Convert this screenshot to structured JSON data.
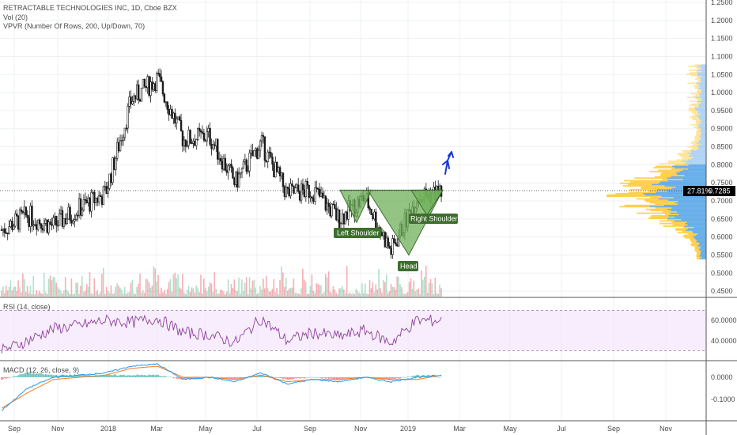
{
  "header": {
    "symbol_line": "RETRACTABLE TECHNOLOGIES INC, 1D, Cboe BZX",
    "vol_line": "Vol (20)",
    "vpvr_line": "VPVR (Number Of Rows, 200, Up/Down, 70)"
  },
  "price_tag": {
    "pct": "27.81%",
    "value": "0.7285"
  },
  "annotations": {
    "left_shoulder": "Left Shoulder",
    "head": "Head",
    "right_shoulder": "Right Shoulder"
  },
  "rsi_label": "RSI (14, close)",
  "macd_label": "MACD (12, 26, close, 9)",
  "colors": {
    "up": "#53b987",
    "down": "#eb4d5c",
    "candle": "#1a1a1a",
    "rsi": "#8e3f9a",
    "macd": "#2196f3",
    "signal": "#ff7a1a",
    "pattern_fill": "#6fb05a",
    "pattern_dark": "#3d6e2c",
    "vpvr_up": "#5aa7e8",
    "vpvr_down": "#ffc832",
    "arrow": "#1a36d8"
  },
  "chart_data": [
    {
      "type": "candlestick",
      "title": "RETRACTABLE TECHNOLOGIES INC, 1D, Cboe BZX",
      "x_ticks": [
        "Sep",
        "Nov",
        "2018",
        "Mar",
        "May",
        "Jul",
        "Sep",
        "Nov",
        "2019",
        "Mar",
        "May",
        "Jul",
        "Sep",
        "Nov"
      ],
      "y_ticks": [
        "1.2500",
        "1.2000",
        "1.1500",
        "1.1000",
        "1.0500",
        "1.0000",
        "0.9500",
        "0.9000",
        "0.8500",
        "0.8000",
        "0.7500",
        "0.7000",
        "0.6500",
        "0.6000",
        "0.5500",
        "0.5000",
        "0.4500"
      ],
      "ylim": [
        0.43,
        1.26
      ],
      "last_price": 0.7285,
      "close_path": [
        {
          "x": "Sep",
          "y": 0.62
        },
        {
          "x": "Oct",
          "y": 0.66
        },
        {
          "x": "Nov",
          "y": 0.63
        },
        {
          "x": "Dec",
          "y": 0.68
        },
        {
          "x": "2018",
          "y": 0.72
        },
        {
          "x": "Feb",
          "y": 0.98
        },
        {
          "x": "Mar",
          "y": 1.04
        },
        {
          "x": "Apr",
          "y": 0.87
        },
        {
          "x": "May",
          "y": 0.88
        },
        {
          "x": "Jun",
          "y": 0.75
        },
        {
          "x": "Jul",
          "y": 0.86
        },
        {
          "x": "Aug",
          "y": 0.72
        },
        {
          "x": "Sep",
          "y": 0.73
        },
        {
          "x": "Oct",
          "y": 0.65
        },
        {
          "x": "Nov",
          "y": 0.71
        },
        {
          "x": "Dec",
          "y": 0.56
        },
        {
          "x": "2019",
          "y": 0.71
        },
        {
          "x": "Feb",
          "y": 0.7285
        }
      ],
      "pattern": "inverse head and shoulders",
      "pattern_points": [
        {
          "label": "Left Shoulder",
          "x": "Oct",
          "y": 0.64
        },
        {
          "label": "Head",
          "x": "Dec",
          "y": 0.55
        },
        {
          "label": "Right Shoulder",
          "x": "Jan",
          "y": 0.66
        }
      ],
      "neckline": 0.73
    },
    {
      "type": "line",
      "title": "RSI (14, close)",
      "y_ticks": [
        "60.0000",
        "40.0000"
      ],
      "band": [
        30,
        70
      ],
      "series": [
        {
          "name": "RSI",
          "values": [
            30,
            40,
            52,
            55,
            60,
            58,
            62,
            48,
            46,
            38,
            62,
            40,
            48,
            44,
            50,
            38,
            60,
            60
          ]
        }
      ]
    },
    {
      "type": "line",
      "title": "MACD (12, 26, close, 9)",
      "y_ticks": [
        "0.0000",
        "-0.1000"
      ],
      "series": [
        {
          "name": "MACD",
          "values": [
            -0.15,
            -0.05,
            0.0,
            0.01,
            0.02,
            0.05,
            0.06,
            -0.01,
            0.0,
            -0.02,
            0.02,
            -0.03,
            -0.01,
            -0.02,
            0.0,
            -0.02,
            0.0,
            0.01
          ]
        },
        {
          "name": "Signal",
          "values": [
            -0.14,
            -0.07,
            -0.01,
            0.0,
            0.01,
            0.04,
            0.05,
            0.0,
            0.0,
            -0.01,
            0.01,
            -0.02,
            -0.01,
            -0.01,
            0.0,
            -0.01,
            -0.01,
            0.01
          ]
        }
      ]
    }
  ]
}
